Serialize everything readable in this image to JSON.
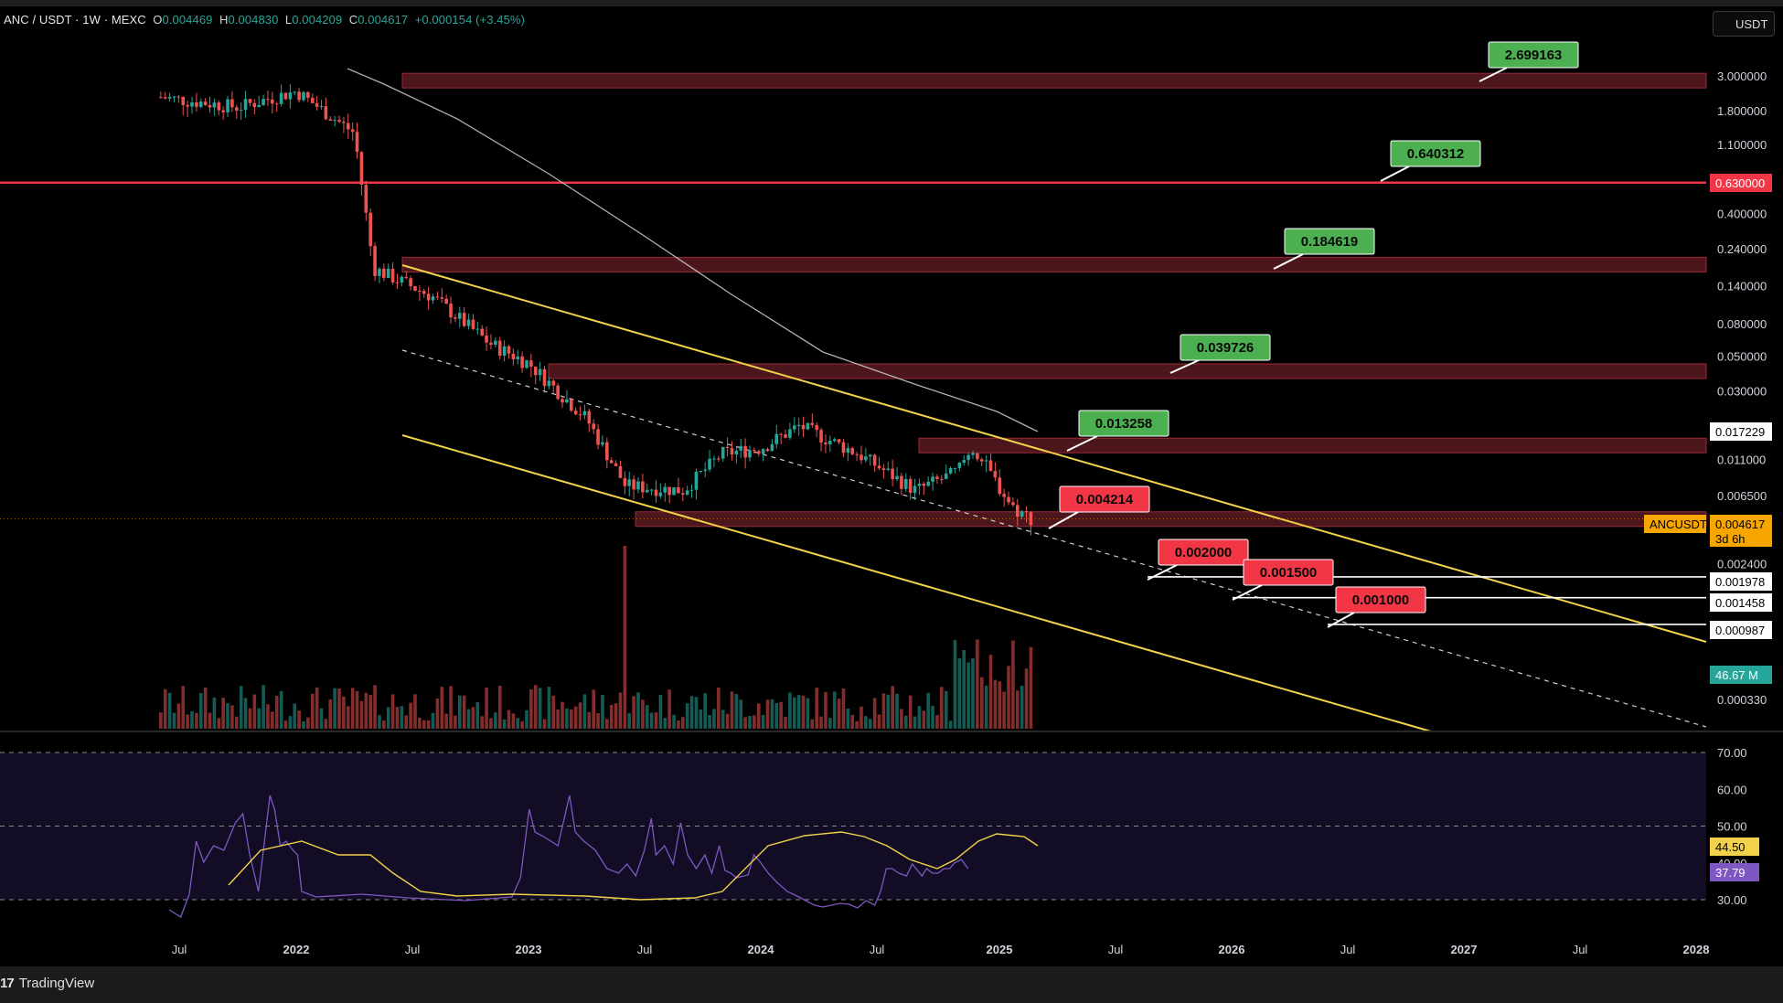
{
  "header": {
    "symbol": "ANC / USDT · 1W · MEXC",
    "o_label": "O",
    "o": "0.004469",
    "h_label": "H",
    "h": "0.004830",
    "l_label": "L",
    "l": "0.004209",
    "c_label": "C",
    "c": "0.004617",
    "change": "+0.000154 (+3.45%)"
  },
  "currency_button": "USDT",
  "footer": {
    "brand_mark": "17",
    "brand": "TradingView"
  },
  "colors": {
    "background": "#000000",
    "bull": "#26a69a",
    "bear": "#ef5350",
    "channel": "#f2d24b",
    "resistance_zone": "#5a1a22",
    "target_up": "#4caf50",
    "target_down": "#f23645",
    "rsi_line": "#7e57c2",
    "rsi_ma": "#f2d24b",
    "ma_line": "#cfcfcf"
  },
  "chart_data": {
    "type": "candlestick",
    "scale": "log",
    "x_ticks": [
      "Jul",
      "2022",
      "Jul",
      "2023",
      "Jul",
      "2024",
      "Jul",
      "2025",
      "Jul",
      "2026",
      "Jul",
      "2027",
      "Jul",
      "2028"
    ],
    "y_ticks": [
      "3.000000",
      "1.800000",
      "1.100000",
      "0.400000",
      "0.240000",
      "0.140000",
      "0.080000",
      "0.050000",
      "0.030000",
      "0.011000",
      "0.006500",
      "0.002400",
      "0.000330"
    ],
    "price_axis_tags": [
      {
        "text": "0.630000",
        "style": "red"
      },
      {
        "text": "0.017229",
        "style": "white"
      },
      {
        "text": "ANCUSDT",
        "style": "orange"
      },
      {
        "text": "0.004617",
        "style": "orange"
      },
      {
        "text": "3d 6h",
        "style": "orange"
      },
      {
        "text": "0.001978",
        "style": "white"
      },
      {
        "text": "0.001458",
        "style": "white"
      },
      {
        "text": "0.000987",
        "style": "white"
      },
      {
        "text": "46.67 M",
        "style": "teal"
      }
    ],
    "last_price": 0.004617,
    "weekly_close_path": [
      {
        "date": "2021-06",
        "price": 2.2
      },
      {
        "date": "2021-10",
        "price": 1.9
      },
      {
        "date": "2022-01",
        "price": 2.4
      },
      {
        "date": "2022-04",
        "price": 1.3
      },
      {
        "date": "2022-05",
        "price": 0.18
      },
      {
        "date": "2022-08",
        "price": 0.12
      },
      {
        "date": "2022-11",
        "price": 0.06
      },
      {
        "date": "2023-01",
        "price": 0.045
      },
      {
        "date": "2023-04",
        "price": 0.02
      },
      {
        "date": "2023-06",
        "price": 0.0075
      },
      {
        "date": "2023-09",
        "price": 0.007
      },
      {
        "date": "2023-11",
        "price": 0.012
      },
      {
        "date": "2024-01",
        "price": 0.013
      },
      {
        "date": "2024-03",
        "price": 0.018
      },
      {
        "date": "2024-06",
        "price": 0.012
      },
      {
        "date": "2024-09",
        "price": 0.007
      },
      {
        "date": "2024-11",
        "price": 0.009
      },
      {
        "date": "2024-12",
        "price": 0.013
      },
      {
        "date": "2025-02",
        "price": 0.0055
      },
      {
        "date": "2025-03",
        "price": 0.004617
      }
    ],
    "horizontal_line": {
      "price": 0.63
    },
    "resistance_zones": [
      2.8,
      0.19,
      0.04,
      0.0135,
      0.0046
    ],
    "targets_up": [
      "2.699163",
      "0.640312",
      "0.184619",
      "0.039726",
      "0.013258"
    ],
    "targets_down": [
      "0.004214",
      "0.002000",
      "0.001500",
      "0.001000"
    ],
    "support_lines": [
      0.001978,
      0.001458,
      0.000987
    ],
    "volume_spike_date": "2023-06",
    "rsi": {
      "y_ticks": [
        "70.00",
        "60.00",
        "50.00",
        "40.00",
        "30.00"
      ],
      "levels": [
        70,
        50,
        30
      ],
      "value": "37.79",
      "ma_value": "44.50",
      "range": [
        20,
        72
      ]
    }
  }
}
